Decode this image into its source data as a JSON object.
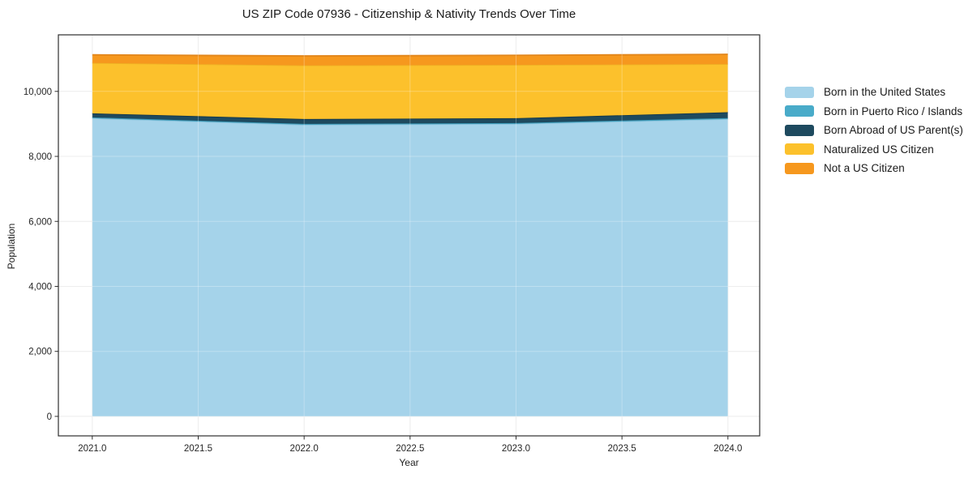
{
  "chart_data": {
    "type": "area",
    "stacked": true,
    "title": "US ZIP Code 07936 - Citizenship & Nativity Trends Over Time",
    "xlabel": "Year",
    "ylabel": "Population",
    "x": [
      2021,
      2022,
      2023,
      2024
    ],
    "series": [
      {
        "id": "born-us",
        "name": "Born in the United States",
        "color": "#A5D3EA",
        "edge": "#8CC3DD",
        "values": [
          9175,
          8975,
          9000,
          9150
        ]
      },
      {
        "id": "born-pr",
        "name": "Born in Puerto Rico / Islands",
        "color": "#49ABC9",
        "edge": "#3B98B5",
        "values": [
          25,
          25,
          25,
          30
        ]
      },
      {
        "id": "born-abroad",
        "name": "Born Abroad of US Parent(s)",
        "color": "#1E4A5F",
        "edge": "#16394A",
        "values": [
          125,
          150,
          150,
          180
        ]
      },
      {
        "id": "naturalized",
        "name": "Naturalized US Citizen",
        "color": "#FCC12C",
        "edge": "#EFB224",
        "values": [
          1550,
          1650,
          1640,
          1480
        ]
      },
      {
        "id": "not-citizen",
        "name": "Not a US Citizen",
        "color": "#F6981E",
        "edge": "#E2861B",
        "values": [
          250,
          290,
          295,
          300
        ]
      }
    ],
    "totals": [
      11125,
      11090,
      11110,
      11140
    ],
    "xlim": [
      2020.84,
      2024.15
    ],
    "ylim": [
      -600,
      11740
    ],
    "xticks": [
      2021.0,
      2021.5,
      2022.0,
      2022.5,
      2023.0,
      2023.5,
      2024.0
    ],
    "xtick_labels": [
      "2021.0",
      "2021.5",
      "2022.0",
      "2022.5",
      "2023.0",
      "2023.5",
      "2024.0"
    ],
    "yticks": [
      0,
      2000,
      4000,
      6000,
      8000,
      10000
    ],
    "ytick_labels": [
      "0",
      "2,000",
      "4,000",
      "6,000",
      "8,000",
      "10,000"
    ],
    "grid": true,
    "legend_position": "right",
    "axis_color": "#2e2e2e",
    "grid_color": "#e7e7e7"
  }
}
